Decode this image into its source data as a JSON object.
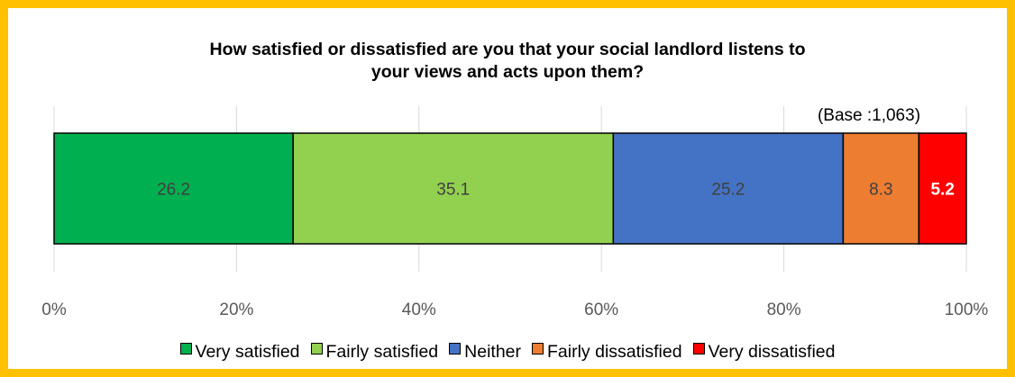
{
  "chart_data": {
    "type": "bar",
    "orientation": "horizontal-stacked-100",
    "title": "How satisfied  or dissatisfied  are you that your social landlord  listens to\nyour views and acts upon them?",
    "annotation": "(Base :1,063)",
    "xlim": [
      0,
      100
    ],
    "x_ticks": [
      "0%",
      "20%",
      "40%",
      "60%",
      "80%",
      "100%"
    ],
    "grid": true,
    "legend_position": "bottom",
    "series": [
      {
        "name": "Very satisfied",
        "values": [
          26.2
        ],
        "label": "26.2",
        "color": "#00B050",
        "label_color": "#404040",
        "label_bold": false
      },
      {
        "name": "Fairly satisfied",
        "values": [
          35.1
        ],
        "label": "35.1",
        "color": "#92D050",
        "label_color": "#404040",
        "label_bold": false
      },
      {
        "name": "Neither",
        "values": [
          25.2
        ],
        "label": "25.2",
        "color": "#4472C4",
        "label_color": "#404040",
        "label_bold": false
      },
      {
        "name": "Fairly dissatisfied",
        "values": [
          8.3
        ],
        "label": "8.3",
        "color": "#ED7D31",
        "label_color": "#404040",
        "label_bold": false
      },
      {
        "name": "Very dissatisfied",
        "values": [
          5.2
        ],
        "label": "5.2",
        "color": "#FF0000",
        "label_color": "#FFFFFF",
        "label_bold": true
      }
    ]
  },
  "colors": {
    "frame_border": "#FFC000",
    "gridline": "#D9D9D9",
    "tick_text": "#595959"
  }
}
